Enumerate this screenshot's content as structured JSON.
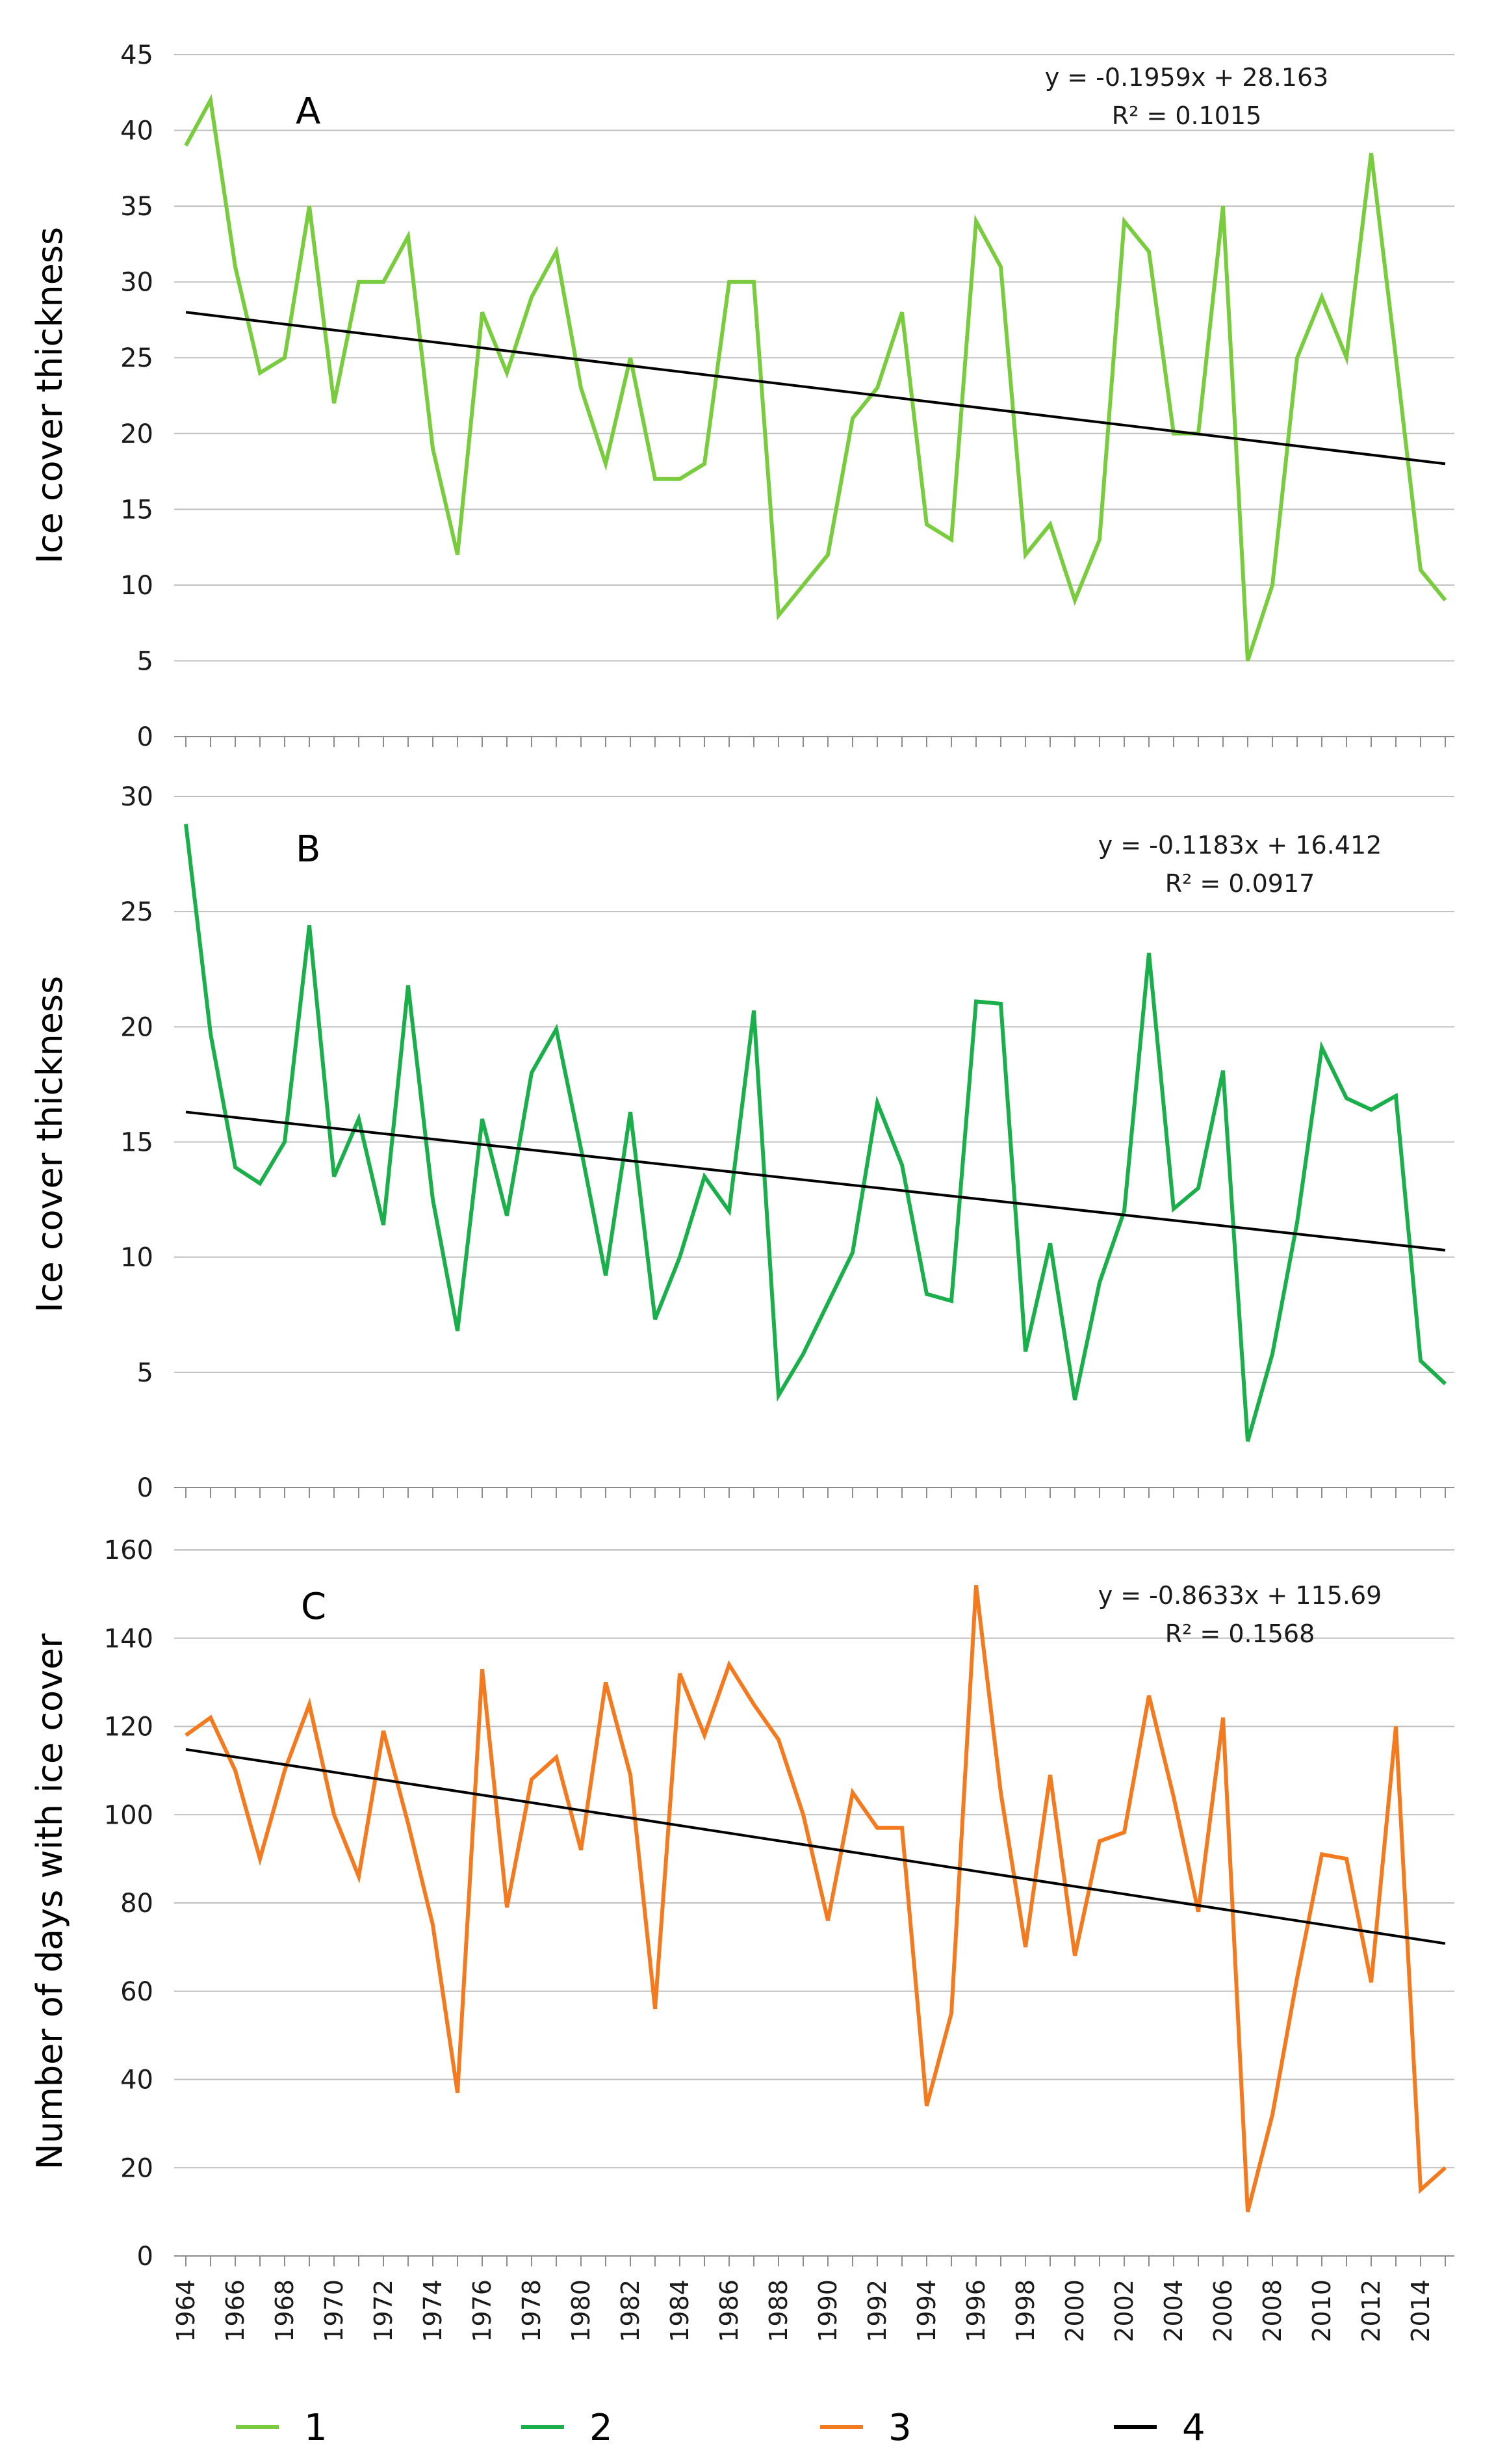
{
  "chart_data": [
    {
      "type": "line",
      "panel_label": "A",
      "ylabel": "Ice cover thickness",
      "xlabel": "",
      "ylim": [
        0,
        45
      ],
      "yticks": [
        0,
        5,
        10,
        15,
        20,
        25,
        30,
        35,
        40,
        45
      ],
      "grid": true,
      "equation": "y = -0.1959x + 28.163",
      "r2": "R² = 0.1015",
      "color": "#7ACC3F",
      "series": [
        {
          "name": "1",
          "x": [
            1964,
            1965,
            1966,
            1967,
            1968,
            1969,
            1970,
            1971,
            1972,
            1973,
            1974,
            1975,
            1976,
            1977,
            1978,
            1979,
            1980,
            1981,
            1982,
            1983,
            1984,
            1985,
            1986,
            1987,
            1988,
            1989,
            1990,
            1991,
            1992,
            1993,
            1994,
            1995,
            1996,
            1997,
            1998,
            1999,
            2000,
            2001,
            2002,
            2003,
            2004,
            2005,
            2006,
            2007,
            2008,
            2009,
            2010,
            2011,
            2012,
            2013,
            2014,
            2015
          ],
          "values": [
            39,
            42,
            31,
            24,
            25,
            35,
            22,
            30,
            30,
            33,
            19,
            12,
            28,
            24,
            29,
            32,
            23,
            18,
            25,
            17,
            17,
            18,
            30,
            30,
            8,
            10,
            12,
            21,
            23,
            28,
            14,
            13,
            34,
            31,
            12,
            14,
            9,
            13,
            34,
            32,
            20,
            20,
            35,
            5,
            10,
            25,
            29,
            25,
            38.5,
            25,
            11,
            9
          ]
        }
      ],
      "trend": {
        "name": "4",
        "start": [
          1964,
          28.0
        ],
        "end": [
          2015,
          18.0
        ]
      }
    },
    {
      "type": "line",
      "panel_label": "B",
      "ylabel": "Ice cover thickness",
      "xlabel": "",
      "ylim": [
        0,
        30
      ],
      "yticks": [
        0,
        5,
        10,
        15,
        20,
        25,
        30
      ],
      "grid": true,
      "equation": "y = -0.1183x + 16.412",
      "r2": "R² = 0.0917",
      "color": "#1BAF4C",
      "series": [
        {
          "name": "2",
          "x": [
            1964,
            1965,
            1966,
            1967,
            1968,
            1969,
            1970,
            1971,
            1972,
            1973,
            1974,
            1975,
            1976,
            1977,
            1978,
            1979,
            1980,
            1981,
            1982,
            1983,
            1984,
            1985,
            1986,
            1987,
            1988,
            1989,
            1990,
            1991,
            1992,
            1993,
            1994,
            1995,
            1996,
            1997,
            1998,
            1999,
            2000,
            2001,
            2002,
            2003,
            2004,
            2005,
            2006,
            2007,
            2008,
            2009,
            2010,
            2011,
            2012,
            2013,
            2014,
            2015
          ],
          "values": [
            28.8,
            19.7,
            13.9,
            13.2,
            15,
            24.4,
            13.5,
            16,
            11.4,
            21.8,
            12.5,
            6.8,
            16,
            11.8,
            18,
            19.9,
            14.7,
            9.2,
            16.3,
            7.3,
            10,
            13.5,
            12,
            20.7,
            4,
            5.8,
            8,
            10.2,
            16.7,
            14,
            8.4,
            8.1,
            21.1,
            21,
            5.9,
            10.6,
            3.8,
            8.9,
            12,
            23.2,
            12.1,
            13,
            18.1,
            2,
            5.8,
            11.5,
            19.1,
            16.9,
            16.4,
            17,
            5.5,
            4.5
          ]
        }
      ],
      "trend": {
        "name": "4",
        "start": [
          1964,
          16.3
        ],
        "end": [
          2015,
          10.3
        ]
      }
    },
    {
      "type": "line",
      "panel_label": "C",
      "ylabel": "Number of days with ice cover",
      "xlabel": "",
      "ylim": [
        0,
        160
      ],
      "yticks": [
        0,
        20,
        40,
        60,
        80,
        100,
        120,
        140,
        160
      ],
      "grid": true,
      "equation": "y = -0.8633x + 115.69",
      "r2": "R² = 0.1568",
      "color": "#F47A20",
      "series": [
        {
          "name": "3",
          "x": [
            1964,
            1965,
            1966,
            1967,
            1968,
            1969,
            1970,
            1971,
            1972,
            1973,
            1974,
            1975,
            1976,
            1977,
            1978,
            1979,
            1980,
            1981,
            1982,
            1983,
            1984,
            1985,
            1986,
            1987,
            1988,
            1989,
            1990,
            1991,
            1992,
            1993,
            1994,
            1995,
            1996,
            1997,
            1998,
            1999,
            2000,
            2001,
            2002,
            2003,
            2004,
            2005,
            2006,
            2007,
            2008,
            2009,
            2010,
            2011,
            2012,
            2013,
            2014,
            2015
          ],
          "values": [
            118,
            122,
            110,
            90,
            110,
            125,
            100,
            86,
            119,
            98,
            75,
            37,
            133,
            79,
            108,
            113,
            92,
            130,
            109,
            56,
            132,
            118,
            134,
            125,
            117,
            100,
            76,
            105,
            97,
            97,
            34,
            55,
            152,
            105,
            70,
            109,
            68,
            94,
            96,
            127,
            104,
            78,
            122,
            10,
            32,
            63,
            91,
            90,
            62,
            120,
            15,
            20
          ]
        }
      ],
      "trend": {
        "name": "4",
        "start": [
          1964,
          114.8
        ],
        "end": [
          2015,
          70.8
        ]
      }
    }
  ],
  "x_tick_labels": [
    "1964",
    "1966",
    "1968",
    "1970",
    "1972",
    "1974",
    "1976",
    "1978",
    "1980",
    "1982",
    "1984",
    "1986",
    "1988",
    "1990",
    "1992",
    "1994",
    "1996",
    "1998",
    "2000",
    "2002",
    "2004",
    "2006",
    "2008",
    "2010",
    "2012",
    "2014"
  ],
  "legend": [
    {
      "label": "1",
      "color": "#7ACC3F"
    },
    {
      "label": "2",
      "color": "#1BAF4C"
    },
    {
      "label": "3",
      "color": "#F47A20"
    },
    {
      "label": "4",
      "color": "#000000"
    }
  ]
}
